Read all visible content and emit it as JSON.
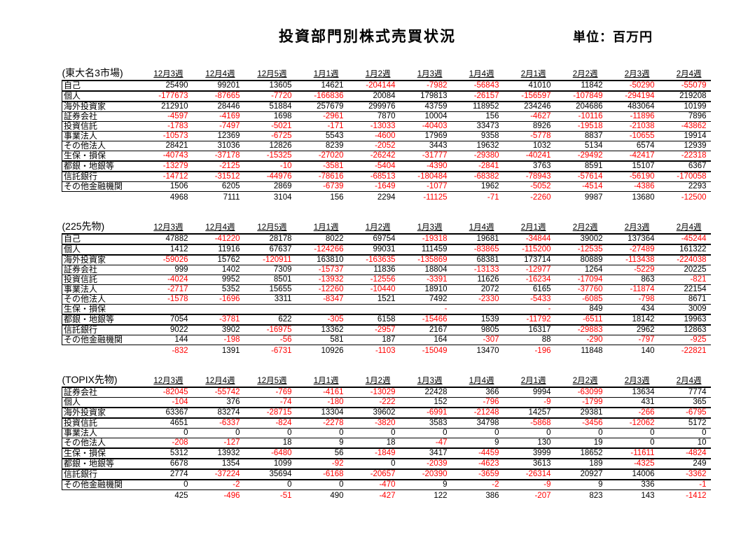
{
  "header": {
    "title": "投資部門別株式売買状況",
    "unit_label": "単位：百万円"
  },
  "colors": {
    "negative_value": "#ff0000",
    "positive_value": "#000000",
    "background": "#ffffff"
  },
  "chart_data": [
    {
      "type": "table",
      "title": "(東大名3市場)",
      "columns": [
        "12月3週",
        "12月4週",
        "12月5週",
        "1月1週",
        "1月2週",
        "1月3週",
        "1月4週",
        "2月1週",
        "2月2週",
        "2月3週",
        "2月4週"
      ],
      "rows": [
        {
          "label": "自己",
          "values": [
            25490,
            99201,
            13605,
            14621,
            -204144,
            -7982,
            -56843,
            41010,
            11842,
            -50290,
            -55079
          ]
        },
        {
          "label": "個人",
          "values": [
            -177673,
            -87665,
            -7720,
            -166836,
            20084,
            179813,
            -26157,
            -156597,
            -107849,
            -294194,
            219208
          ]
        },
        {
          "label": "海外投資家",
          "values": [
            212910,
            28446,
            51884,
            257679,
            299976,
            43759,
            118952,
            234246,
            204686,
            483064,
            10199
          ]
        },
        {
          "label": "証券会社",
          "values": [
            -4597,
            -4169,
            1698,
            -2961,
            7870,
            10004,
            156,
            -4627,
            -10116,
            -11896,
            7896
          ]
        },
        {
          "label": "投資信託",
          "values": [
            -1783,
            -7497,
            -5021,
            -171,
            -13033,
            -40403,
            33473,
            8926,
            -19518,
            -21038,
            -43862
          ]
        },
        {
          "label": "事業法人",
          "values": [
            -10573,
            12369,
            -6725,
            5543,
            -4600,
            17969,
            9358,
            -5778,
            8837,
            -10655,
            19914
          ]
        },
        {
          "label": "その他法人",
          "values": [
            28421,
            31036,
            12826,
            8239,
            -2052,
            3443,
            19632,
            1032,
            5134,
            6574,
            12939
          ]
        },
        {
          "label": "生保・損保",
          "values": [
            -40743,
            -37178,
            -15325,
            -27020,
            -26242,
            -31777,
            -29380,
            -40241,
            -29492,
            -42417,
            -22318
          ]
        },
        {
          "label": "都銀・地銀等",
          "values": [
            -13279,
            -2125,
            -10,
            -3581,
            -5404,
            -4390,
            -2841,
            3763,
            8591,
            15107,
            6367
          ]
        },
        {
          "label": "信託銀行",
          "values": [
            -14712,
            -31512,
            -44976,
            -78616,
            -68513,
            -180484,
            -68382,
            -78943,
            -57614,
            -56190,
            -170058
          ]
        },
        {
          "label": "その他金融機関",
          "values": [
            1506,
            6205,
            2869,
            -6739,
            -1649,
            -1077,
            1962,
            -5052,
            -4514,
            -4386,
            2293
          ]
        }
      ],
      "totals": [
        4968,
        7111,
        3104,
        156,
        2294,
        -11125,
        -71,
        -2260,
        9987,
        13680,
        -12500
      ]
    },
    {
      "type": "table",
      "title": "(225先物)",
      "columns": [
        "12月3週",
        "12月4週",
        "12月5週",
        "1月1週",
        "1月2週",
        "1月3週",
        "1月4週",
        "2月1週",
        "2月2週",
        "2月3週",
        "2月4週"
      ],
      "rows": [
        {
          "label": "自己",
          "values": [
            47882,
            -41220,
            28178,
            8022,
            69754,
            -19318,
            19681,
            -34844,
            39002,
            137364,
            -45244
          ]
        },
        {
          "label": "個人",
          "values": [
            1412,
            11916,
            67637,
            -124266,
            99031,
            111459,
            -83865,
            -115200,
            -12535,
            -27489,
            161322
          ]
        },
        {
          "label": "海外投資家",
          "values": [
            -59026,
            15762,
            -120911,
            163810,
            -163635,
            -135869,
            68381,
            173714,
            80889,
            -113438,
            -224038
          ]
        },
        {
          "label": "証券会社",
          "values": [
            999,
            1402,
            7309,
            -15737,
            11836,
            18804,
            -13133,
            -12977,
            1264,
            -5229,
            20225
          ]
        },
        {
          "label": "投資信託",
          "values": [
            -4024,
            9952,
            8501,
            -13932,
            -12556,
            -3391,
            11626,
            -16234,
            -17094,
            863,
            -821
          ]
        },
        {
          "label": "事業法人",
          "values": [
            -2717,
            5352,
            15655,
            -12260,
            -10440,
            18910,
            2072,
            6165,
            -37760,
            -11874,
            22154
          ]
        },
        {
          "label": "その他法人",
          "values": [
            -1578,
            -1696,
            3311,
            -8347,
            1521,
            7492,
            -2330,
            -5433,
            -6085,
            -798,
            8671
          ]
        },
        {
          "label": "生保・損保",
          "values": [
            null,
            null,
            null,
            null,
            null,
            "-",
            null,
            "-",
            849,
            434,
            3009
          ]
        },
        {
          "label": "都銀・地銀等",
          "values": [
            7054,
            -3781,
            622,
            -305,
            6158,
            -15466,
            1539,
            -11792,
            -6511,
            18142,
            19963
          ]
        },
        {
          "label": "信託銀行",
          "values": [
            9022,
            3902,
            -16975,
            13362,
            -2957,
            2167,
            9805,
            16317,
            -29883,
            2962,
            12863
          ]
        },
        {
          "label": "その他金融機関",
          "values": [
            144,
            -198,
            -56,
            581,
            187,
            164,
            -307,
            88,
            -290,
            -797,
            -925
          ]
        }
      ],
      "totals": [
        -832,
        1391,
        -6731,
        10926,
        -1103,
        -15049,
        13470,
        -196,
        11848,
        140,
        -22821
      ]
    },
    {
      "type": "table",
      "title": "(TOPIX先物)",
      "columns": [
        "12月3週",
        "12月4週",
        "12月5週",
        "1月1週",
        "1月2週",
        "1月3週",
        "1月4週",
        "2月1週",
        "2月2週",
        "2月3週",
        "2月4週"
      ],
      "rows": [
        {
          "label": "証券会社",
          "values": [
            -82045,
            -55742,
            -769,
            -4161,
            -13029,
            22428,
            366,
            9994,
            -63099,
            13634,
            7774
          ]
        },
        {
          "label": "個人",
          "values": [
            -104,
            376,
            -74,
            -180,
            -222,
            152,
            -796,
            -9,
            -1799,
            431,
            365
          ]
        },
        {
          "label": "海外投資家",
          "values": [
            63367,
            83274,
            -28715,
            13304,
            39602,
            -6991,
            -21248,
            14257,
            29381,
            -266,
            -6795
          ]
        },
        {
          "label": "投資信託",
          "values": [
            4651,
            -6337,
            -824,
            -2278,
            -3820,
            3583,
            34798,
            -5868,
            -3456,
            -12062,
            5172
          ]
        },
        {
          "label": "事業法人",
          "values": [
            0,
            0,
            0,
            0,
            0,
            0,
            0,
            0,
            0,
            0,
            0
          ]
        },
        {
          "label": "その他法人",
          "values": [
            -208,
            -127,
            18,
            9,
            18,
            -47,
            9,
            130,
            19,
            0,
            10
          ]
        },
        {
          "label": "生保・損保",
          "values": [
            5312,
            13932,
            -6480,
            56,
            -1849,
            3417,
            -4459,
            3999,
            18652,
            -11611,
            -4824
          ]
        },
        {
          "label": "都銀・地銀等",
          "values": [
            6678,
            1354,
            1099,
            -92,
            0,
            -2039,
            -4623,
            3613,
            189,
            -4325,
            249
          ]
        },
        {
          "label": "信託銀行",
          "values": [
            2774,
            -37224,
            35694,
            -6168,
            -20657,
            -20390,
            -3659,
            -26314,
            20927,
            14006,
            -3362
          ]
        },
        {
          "label": "その他金融機関",
          "values": [
            0,
            -2,
            0,
            0,
            -470,
            9,
            -2,
            -9,
            9,
            336,
            -1
          ]
        }
      ],
      "totals": [
        425,
        -496,
        -51,
        490,
        -427,
        122,
        386,
        -207,
        823,
        143,
        -1412
      ]
    }
  ]
}
